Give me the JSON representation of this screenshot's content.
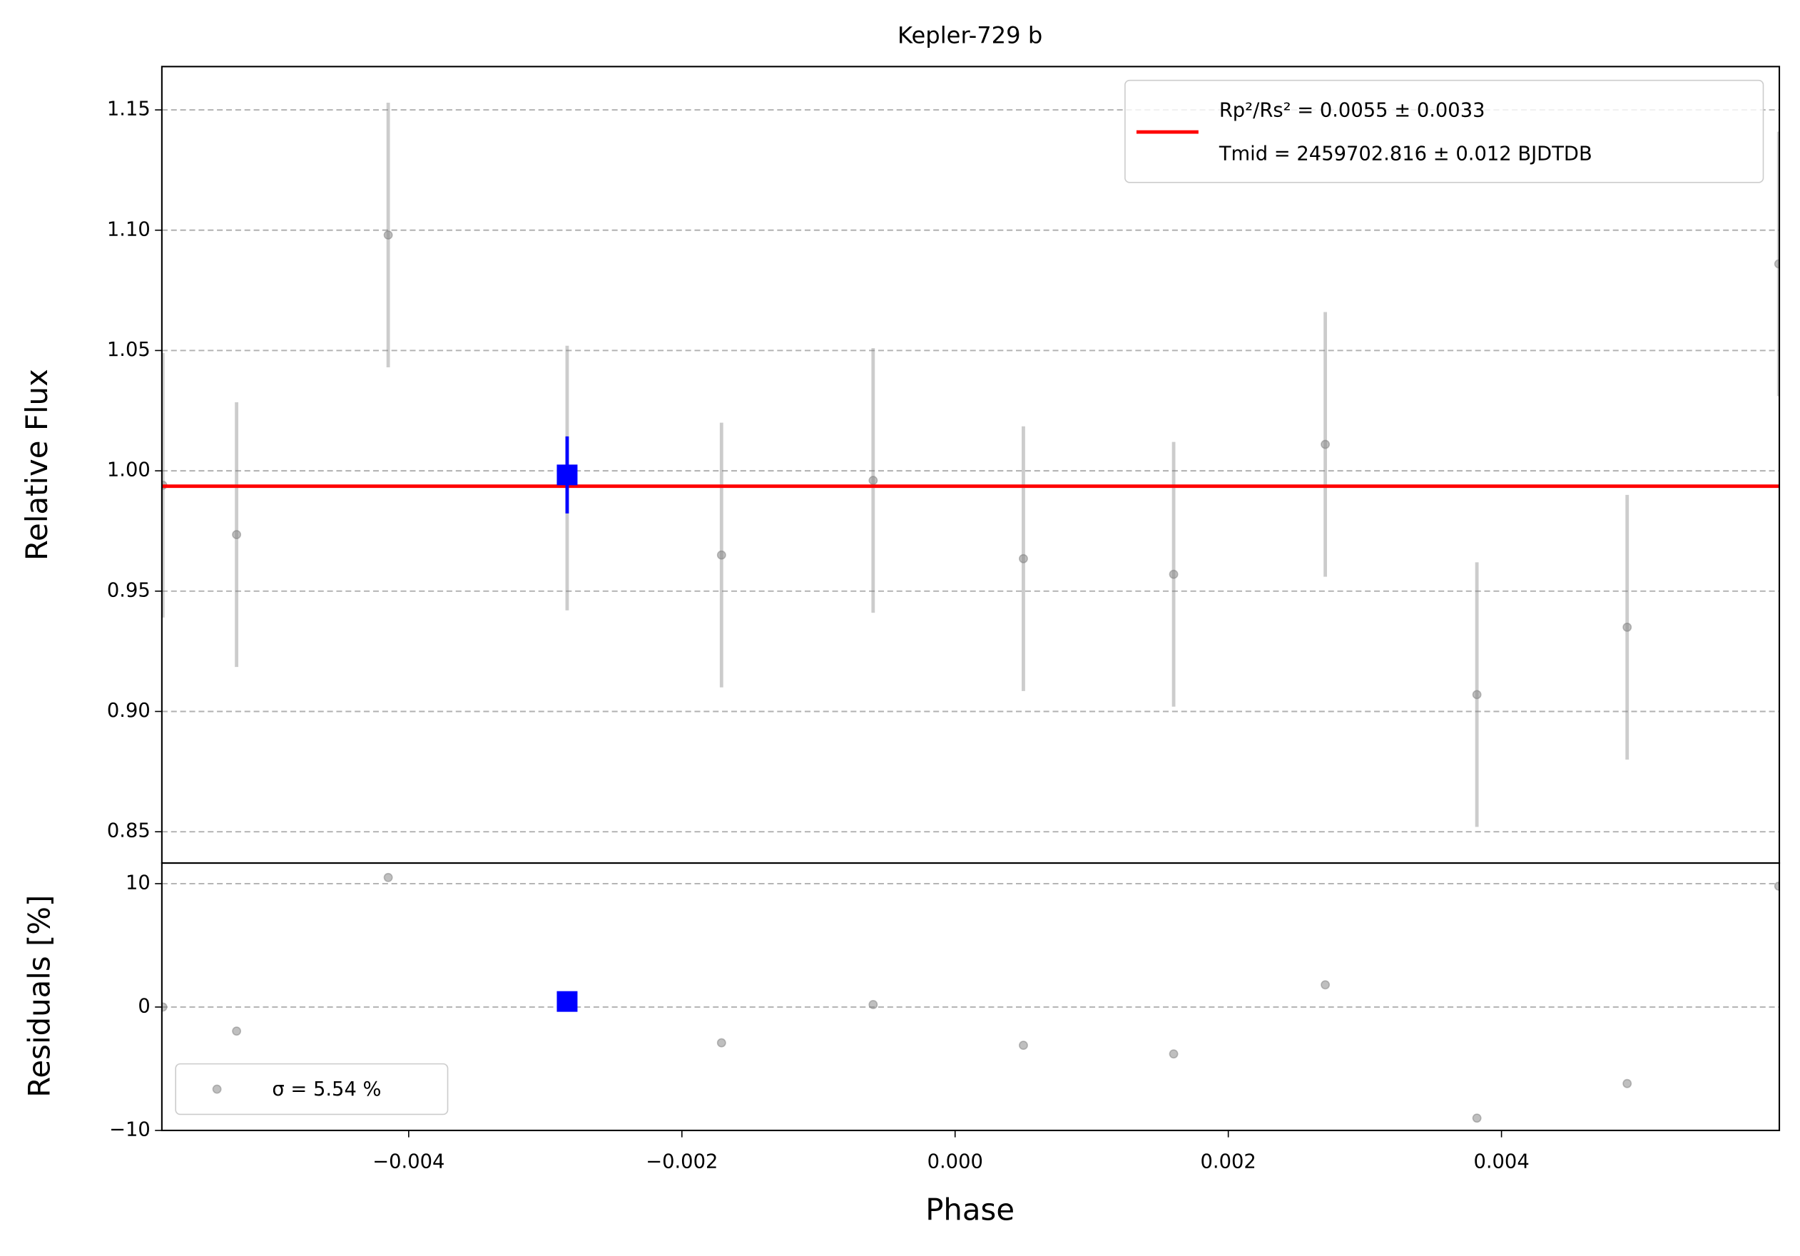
{
  "chart_data": [
    {
      "type": "errorbar",
      "title": "Kepler-729 b",
      "y_label": "Relative Flux",
      "x": [
        -0.0058,
        -0.00526,
        -0.00415,
        -0.00284,
        -0.00171,
        -0.0006,
        0.0005,
        0.0016,
        0.00271,
        0.00382,
        0.00492,
        0.00603
      ],
      "values": [
        0.994,
        0.9735,
        1.098,
        0.997,
        0.965,
        0.996,
        0.9635,
        0.957,
        1.011,
        0.907,
        0.935,
        1.086
      ],
      "errors": [
        0.055,
        0.055,
        0.055,
        0.055,
        0.055,
        0.055,
        0.055,
        0.055,
        0.055,
        0.055,
        0.055,
        0.055
      ],
      "color": "#808080",
      "binned": {
        "x": [
          -0.00284
        ],
        "values": [
          0.9983
        ],
        "errors": [
          0.016
        ],
        "color": "#0000ff"
      },
      "model": {
        "value": 0.9936,
        "color": "#ff0000",
        "legend": [
          "Rp²/Rs² = 0.0055 ± 0.0033",
          "Tmid = 2459702.816 ± 0.012 BJDTDB"
        ]
      },
      "xlim": [
        -0.005807,
        0.006034
      ],
      "ylim": [
        0.837,
        1.168
      ],
      "yticks": [
        {
          "value": 0.85,
          "label": "0.85"
        },
        {
          "value": 0.9,
          "label": "0.90"
        },
        {
          "value": 0.95,
          "label": "0.95"
        },
        {
          "value": 1.0,
          "label": "1.00"
        },
        {
          "value": 1.05,
          "label": "1.05"
        },
        {
          "value": 1.1,
          "label": "1.10"
        },
        {
          "value": 1.15,
          "label": "1.15"
        }
      ],
      "grid": true,
      "legend_position": "upper right"
    },
    {
      "type": "scatter",
      "x_label": "Phase",
      "y_label": "Residuals [%]",
      "x": [
        -0.0058,
        -0.00526,
        -0.00415,
        -0.00171,
        -0.0006,
        0.0005,
        0.0016,
        0.00271,
        0.00382,
        0.00492,
        0.00603
      ],
      "values": [
        0,
        -1.95,
        10.5,
        -2.9,
        0.2,
        -3.1,
        -3.8,
        1.8,
        -9.0,
        -6.2,
        9.8
      ],
      "color": "#808080",
      "legend": "σ = 5.54 %",
      "legend_position": "lower left",
      "binned": {
        "x": [
          -0.00284
        ],
        "values": [
          0.45
        ],
        "color": "#0000ff"
      },
      "xlim": [
        -0.005807,
        0.006034
      ],
      "ylim": [
        -10,
        11.67
      ],
      "xticks": [
        {
          "value": -0.004,
          "label": "−0.004"
        },
        {
          "value": -0.002,
          "label": "−0.002"
        },
        {
          "value": 0,
          "label": "0.000"
        },
        {
          "value": 0.002,
          "label": "0.002"
        },
        {
          "value": 0.004,
          "label": "0.004"
        }
      ],
      "yticks": [
        {
          "value": -10,
          "label": "−10"
        },
        0,
        10
      ],
      "grid": true
    }
  ]
}
